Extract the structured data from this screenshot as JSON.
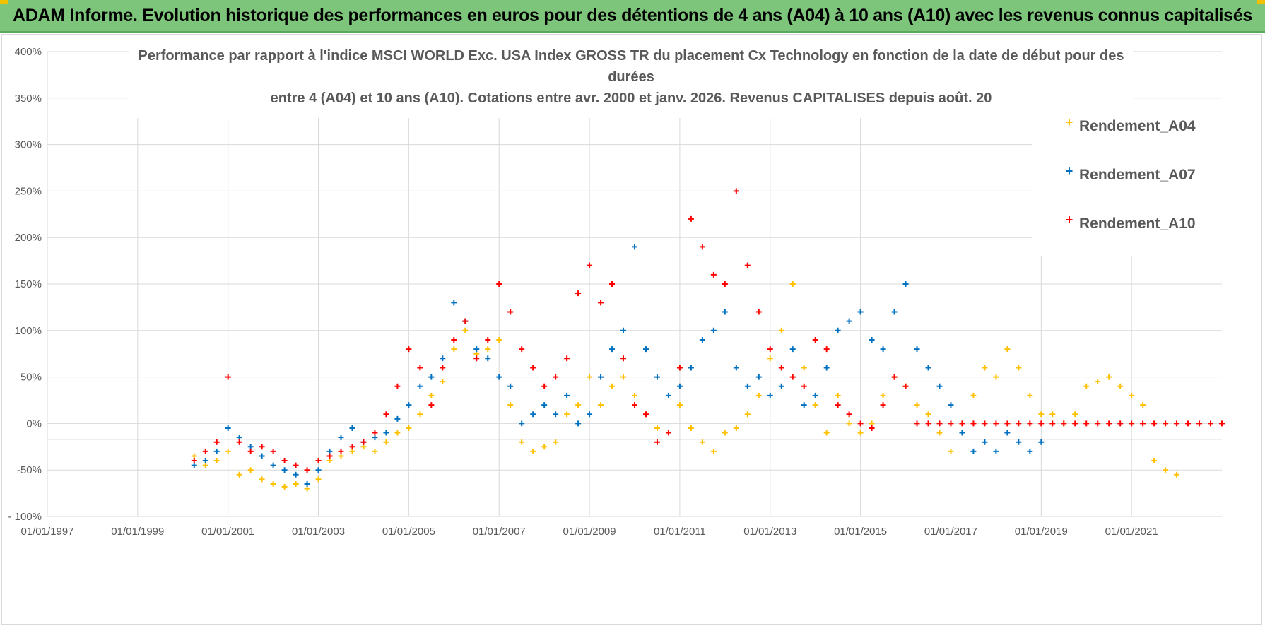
{
  "banner": {
    "title": "ADAM Informe. Evolution historique des performances en euros pour des détentions de 4 ans (A04) à 10 ans (A10) avec les revenus connus capitalisés"
  },
  "colors": {
    "banner_bg": "#7dc57a",
    "A04": "#ffc000",
    "A07": "#0070c0",
    "A10": "#ff0000",
    "grid": "#d9d9d9",
    "text": "#595959"
  },
  "chart_data": {
    "type": "scatter",
    "title_lines": [
      "Performance par rapport à l'indice MSCI WORLD Exc. USA Index GROSS TR  du placement Cx Technology  en fonction de la date de début pour des",
      "durées",
      "entre 4 (A04) et 10 ans (A10). Cotations entre avr. 2000 et janv. 2026. Revenus CAPITALISES depuis août. 20"
    ],
    "xlabel": "",
    "ylabel": "",
    "x_ticks": [
      "01/01/1997",
      "01/01/1999",
      "01/01/2001",
      "01/01/2003",
      "01/01/2005",
      "01/01/2007",
      "01/01/2009",
      "01/01/2011",
      "01/01/2013",
      "01/01/2015",
      "01/01/2017",
      "01/01/2019",
      "01/01/2021"
    ],
    "y_ticks": [
      "400%",
      "350%",
      "300%",
      "250%",
      "200%",
      "150%",
      "100%",
      "50%",
      "0%",
      "-50%",
      "- 100%"
    ],
    "xlim": [
      1997.0,
      2023.0
    ],
    "ylim": [
      -100,
      400
    ],
    "legend": [
      "Rendement_A04",
      "Rendement_A07",
      "Rendement_A10"
    ],
    "legend_position": "top-right",
    "marker": "+",
    "series": [
      {
        "name": "Rendement_A04",
        "color": "#ffc000",
        "x": [
          2000.25,
          2000.5,
          2000.75,
          2001.0,
          2001.25,
          2001.5,
          2001.75,
          2002.0,
          2002.25,
          2002.5,
          2002.75,
          2003.0,
          2003.25,
          2003.5,
          2003.75,
          2004.0,
          2004.25,
          2004.5,
          2004.75,
          2005.0,
          2005.25,
          2005.5,
          2005.75,
          2006.0,
          2006.25,
          2006.5,
          2006.75,
          2007.0,
          2007.25,
          2007.5,
          2007.75,
          2008.0,
          2008.25,
          2008.5,
          2008.75,
          2009.0,
          2009.25,
          2009.5,
          2009.75,
          2010.0,
          2010.25,
          2010.5,
          2010.75,
          2011.0,
          2011.25,
          2011.5,
          2011.75,
          2012.0,
          2012.25,
          2012.5,
          2012.75,
          2013.0,
          2013.25,
          2013.5,
          2013.75,
          2014.0,
          2014.25,
          2014.5,
          2014.75,
          2015.0,
          2015.25,
          2015.5,
          2015.75,
          2016.0,
          2016.25,
          2016.5,
          2016.75,
          2017.0,
          2017.25,
          2017.5,
          2017.75,
          2018.0,
          2018.25,
          2018.5,
          2018.75,
          2019.0,
          2019.25,
          2019.5,
          2019.75,
          2020.0,
          2020.25,
          2020.5,
          2020.75,
          2021.0,
          2021.25,
          2021.5,
          2021.75,
          2022.0
        ],
        "y": [
          -35,
          -45,
          -40,
          -30,
          -55,
          -50,
          -60,
          -65,
          -68,
          -65,
          -70,
          -60,
          -40,
          -35,
          -30,
          -25,
          -30,
          -20,
          -10,
          -5,
          10,
          30,
          45,
          80,
          100,
          75,
          80,
          90,
          20,
          -20,
          -30,
          -25,
          -20,
          10,
          20,
          50,
          20,
          40,
          50,
          30,
          10,
          -5,
          -10,
          20,
          -5,
          -20,
          -30,
          -10,
          -5,
          10,
          30,
          70,
          100,
          150,
          60,
          20,
          -10,
          30,
          0,
          -10,
          0,
          30,
          50,
          40,
          20,
          10,
          -10,
          -30,
          0,
          30,
          60,
          50,
          80,
          60,
          30,
          10,
          10,
          0,
          10,
          40,
          45,
          50,
          40,
          30,
          20,
          -40,
          -50,
          -55
        ]
      },
      {
        "name": "Rendement_A07",
        "color": "#0070c0",
        "x": [
          2000.25,
          2000.5,
          2000.75,
          2001.0,
          2001.25,
          2001.5,
          2001.75,
          2002.0,
          2002.25,
          2002.5,
          2002.75,
          2003.0,
          2003.25,
          2003.5,
          2003.75,
          2004.0,
          2004.25,
          2004.5,
          2004.75,
          2005.0,
          2005.25,
          2005.5,
          2005.75,
          2006.0,
          2006.25,
          2006.5,
          2006.75,
          2007.0,
          2007.25,
          2007.5,
          2007.75,
          2008.0,
          2008.25,
          2008.5,
          2008.75,
          2009.0,
          2009.25,
          2009.5,
          2009.75,
          2010.0,
          2010.25,
          2010.5,
          2010.75,
          2011.0,
          2011.25,
          2011.5,
          2011.75,
          2012.0,
          2012.25,
          2012.5,
          2012.75,
          2013.0,
          2013.25,
          2013.5,
          2013.75,
          2014.0,
          2014.25,
          2014.5,
          2014.75,
          2015.0,
          2015.25,
          2015.5,
          2015.75,
          2016.0,
          2016.25,
          2016.5,
          2016.75,
          2017.0,
          2017.25,
          2017.5,
          2017.75,
          2018.0,
          2018.25,
          2018.5,
          2018.75,
          2019.0
        ],
        "y": [
          -45,
          -40,
          -30,
          -5,
          -15,
          -25,
          -35,
          -45,
          -50,
          -55,
          -65,
          -50,
          -30,
          -15,
          -5,
          -20,
          -15,
          -10,
          5,
          20,
          40,
          50,
          70,
          130,
          110,
          80,
          70,
          50,
          40,
          0,
          10,
          20,
          10,
          30,
          0,
          10,
          50,
          80,
          100,
          190,
          80,
          50,
          30,
          40,
          60,
          90,
          100,
          120,
          60,
          40,
          50,
          30,
          40,
          80,
          20,
          30,
          60,
          100,
          110,
          120,
          90,
          80,
          120,
          150,
          80,
          60,
          40,
          20,
          -10,
          -30,
          -20,
          -30,
          -10,
          -20,
          -30,
          -20
        ]
      },
      {
        "name": "Rendement_A10",
        "color": "#ff0000",
        "x": [
          2000.25,
          2000.5,
          2000.75,
          2001.0,
          2001.25,
          2001.5,
          2001.75,
          2002.0,
          2002.25,
          2002.5,
          2002.75,
          2003.0,
          2003.25,
          2003.5,
          2003.75,
          2004.0,
          2004.25,
          2004.5,
          2004.75,
          2005.0,
          2005.25,
          2005.5,
          2005.75,
          2006.0,
          2006.25,
          2006.5,
          2006.75,
          2007.0,
          2007.25,
          2007.5,
          2007.75,
          2008.0,
          2008.25,
          2008.5,
          2008.75,
          2009.0,
          2009.25,
          2009.5,
          2009.75,
          2010.0,
          2010.25,
          2010.5,
          2010.75,
          2011.0,
          2011.25,
          2011.5,
          2011.75,
          2012.0,
          2012.25,
          2012.5,
          2012.75,
          2013.0,
          2013.25,
          2013.5,
          2013.75,
          2014.0,
          2014.25,
          2014.5,
          2014.75,
          2015.0,
          2015.25,
          2015.5,
          2015.75,
          2016.0,
          2016.25,
          2016.5,
          2016.75,
          2017.0,
          2017.25,
          2017.5,
          2017.75,
          2018.0,
          2018.25,
          2018.5,
          2018.75,
          2019.0,
          2019.25,
          2019.5,
          2019.75,
          2020.0,
          2020.25,
          2020.5,
          2020.75,
          2021.0,
          2021.25,
          2021.5,
          2021.75,
          2022.0,
          2022.25,
          2022.5,
          2022.75,
          2023.0
        ],
        "y": [
          -40,
          -30,
          -20,
          50,
          -20,
          -30,
          -25,
          -30,
          -40,
          -45,
          -50,
          -40,
          -35,
          -30,
          -25,
          -20,
          -10,
          10,
          40,
          80,
          60,
          20,
          60,
          90,
          110,
          70,
          90,
          150,
          120,
          80,
          60,
          40,
          50,
          70,
          140,
          170,
          130,
          150,
          70,
          20,
          10,
          -20,
          -10,
          60,
          220,
          190,
          160,
          150,
          250,
          170,
          120,
          80,
          60,
          50,
          40,
          90,
          80,
          20,
          10,
          0,
          -5,
          20,
          50,
          40,
          0,
          0,
          0,
          0,
          0,
          0,
          0,
          0,
          0,
          0,
          0,
          0,
          0,
          0,
          0,
          0,
          0,
          0,
          0,
          0,
          0,
          0,
          0,
          0,
          0,
          0,
          0,
          0
        ]
      }
    ]
  }
}
